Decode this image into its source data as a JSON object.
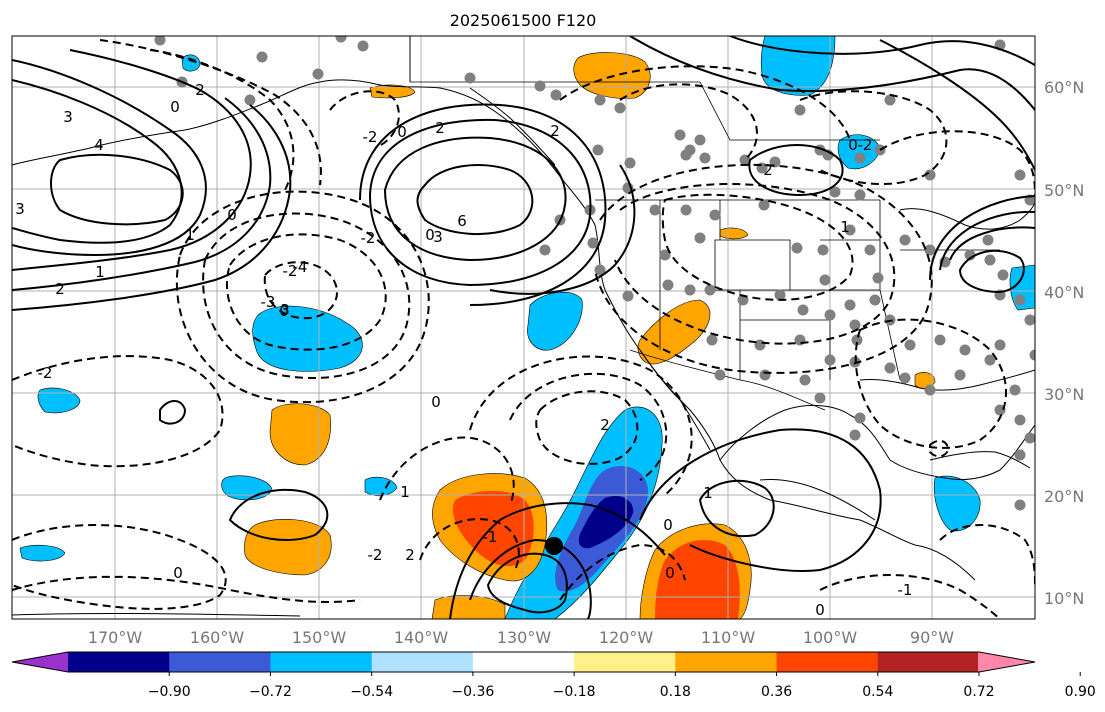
{
  "title": "2025061500 F120",
  "map": {
    "lon_labels": [
      "170°W",
      "160°W",
      "150°W",
      "140°W",
      "130°W",
      "120°W",
      "110°W",
      "100°W",
      "90°W"
    ],
    "lat_labels": [
      "60°N",
      "50°N",
      "40°N",
      "30°N",
      "20°N",
      "10°N"
    ],
    "contour_labels": [
      "3",
      "4",
      "0",
      "2",
      "3",
      "-2",
      "2",
      "0",
      "-2",
      "2",
      "1",
      "6",
      "3",
      "0",
      "-2",
      "-4",
      "0",
      "-3",
      "-2",
      "1",
      "2",
      "0",
      "-2",
      "2",
      "0",
      "1",
      "-1",
      "0",
      "0",
      "1",
      "0",
      "1",
      "-1",
      "0",
      "-2",
      "2",
      "1",
      "0",
      "3",
      "2"
    ],
    "colors": {
      "strong_neg": "#00008b",
      "mid_neg": "#3b5bd6",
      "weak_neg": "#00bfff",
      "weak_pos": "#ffa500",
      "mid_pos": "#ff4500",
      "strong_pos": "#b22222",
      "stations": "#808080",
      "grid": "#b0b0b0"
    }
  },
  "colorbar": {
    "ticks": [
      "−0.90",
      "−0.72",
      "−0.54",
      "−0.36",
      "−0.18",
      "0.18",
      "0.36",
      "0.54",
      "0.72",
      "0.90"
    ],
    "colors": [
      "#9932cc",
      "#00008b",
      "#3b5bd6",
      "#00bfff",
      "#b0e2ff",
      "#ffffff",
      "#fff08a",
      "#ffa500",
      "#ff4500",
      "#b22222",
      "#ff88aa"
    ]
  }
}
